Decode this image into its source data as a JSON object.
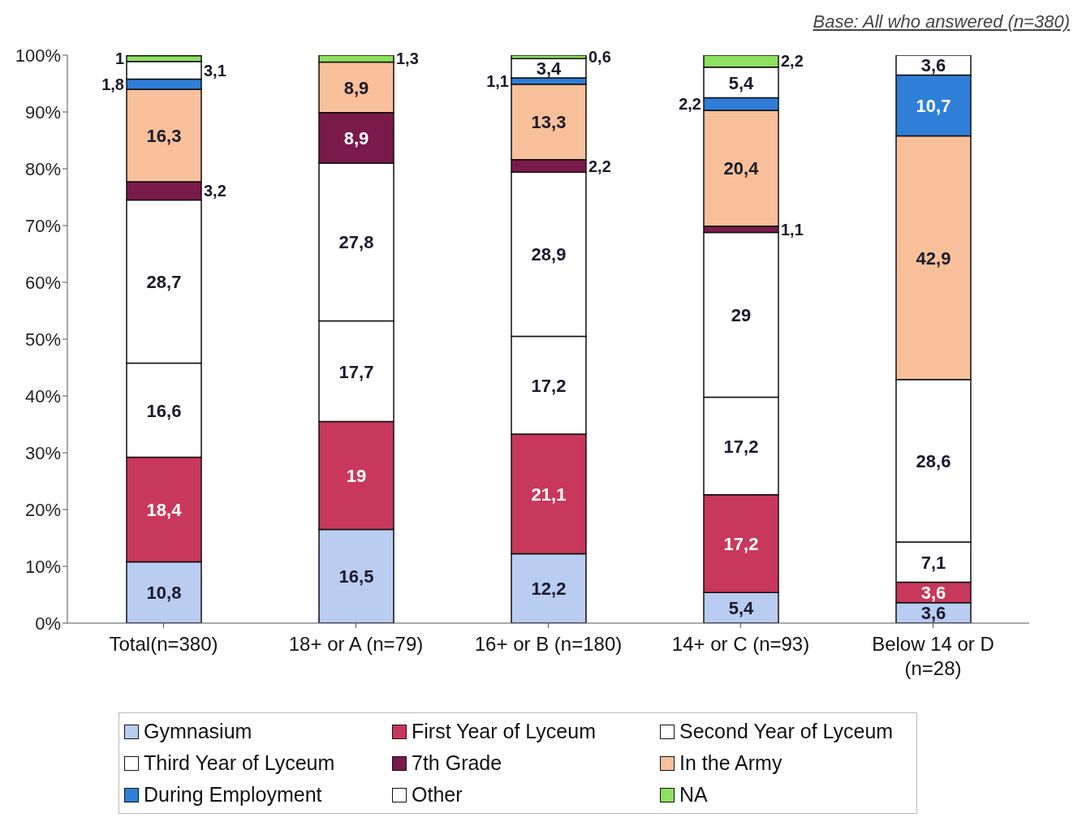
{
  "chart_data": {
    "type": "bar",
    "stacked": true,
    "categories": [
      "Total(n=380)",
      "18+ or A (n=79)",
      "16+ or B (n=180)",
      "14+ or C (n=93)",
      "Below 14 or D (n=28)"
    ],
    "ylim": [
      0,
      100
    ],
    "yticks": [
      {
        "value": 0,
        "label": "0%"
      },
      {
        "value": 10,
        "label": "10%"
      },
      {
        "value": 20,
        "label": "20%"
      },
      {
        "value": 30,
        "label": "30%"
      },
      {
        "value": 40,
        "label": "40%"
      },
      {
        "value": 50,
        "label": "50%"
      },
      {
        "value": 60,
        "label": "60%"
      },
      {
        "value": 70,
        "label": "70%"
      },
      {
        "value": 80,
        "label": "80%"
      },
      {
        "value": 90,
        "label": "90%"
      },
      {
        "value": 100,
        "label": "100%"
      }
    ],
    "grid": false,
    "legend": "bottom",
    "annotations": [
      "Base: All who answered (n=380)"
    ],
    "series": [
      {
        "name": "Gymnasium",
        "color": "#b8cdf0",
        "values": [
          10.8,
          16.5,
          12.2,
          5.4,
          3.6
        ],
        "value_labels": [
          "10,8",
          "16,5",
          "12,2",
          "5,4",
          "3,6"
        ]
      },
      {
        "name": "First Year of Lyceum",
        "color": "#c8385a",
        "values": [
          18.4,
          19,
          21.1,
          17.2,
          3.6
        ],
        "value_labels": [
          "18,4",
          "19",
          "21,1",
          "17,2",
          "3,6"
        ]
      },
      {
        "name": "Second Year of Lyceum",
        "color": "#ffffff",
        "values": [
          16.6,
          17.7,
          17.2,
          17.2,
          7.1
        ],
        "value_labels": [
          "16,6",
          "17,7",
          "17,2",
          "17,2",
          "7,1"
        ]
      },
      {
        "name": "Third Year of Lyceum",
        "color": "#ffffff",
        "values": [
          28.7,
          27.8,
          28.9,
          29,
          28.6
        ],
        "value_labels": [
          "28,7",
          "27,8",
          "28,9",
          "29",
          "28,6"
        ]
      },
      {
        "name": "7th Grade",
        "color": "#7a1a4a",
        "values": [
          3.2,
          8.9,
          2.2,
          1.1,
          null
        ],
        "value_labels": [
          "3,2",
          "8,9",
          "2,2",
          "1,1",
          null
        ]
      },
      {
        "name": "In the Army",
        "color": "#f8c09a",
        "values": [
          16.3,
          8.9,
          13.3,
          20.4,
          42.9
        ],
        "value_labels": [
          "16,3",
          "8,9",
          "13,3",
          "20,4",
          "42,9"
        ]
      },
      {
        "name": "During Employment",
        "color": "#2f7fd8",
        "values": [
          1.8,
          null,
          1.1,
          2.2,
          10.7
        ],
        "value_labels": [
          "1,8",
          null,
          "1,1",
          "2,2",
          "10,7"
        ]
      },
      {
        "name": "Other",
        "color": "#ffffff",
        "values": [
          3.1,
          null,
          3.4,
          5.4,
          3.6
        ],
        "value_labels": [
          "3,1",
          null,
          "3,4",
          "5,4",
          "3,6"
        ]
      },
      {
        "name": "NA",
        "color": "#8ee060",
        "values": [
          1,
          1.3,
          0.6,
          2.2,
          null
        ],
        "value_labels": [
          "1",
          "1,3",
          "0,6",
          "2,2",
          null
        ]
      }
    ]
  }
}
